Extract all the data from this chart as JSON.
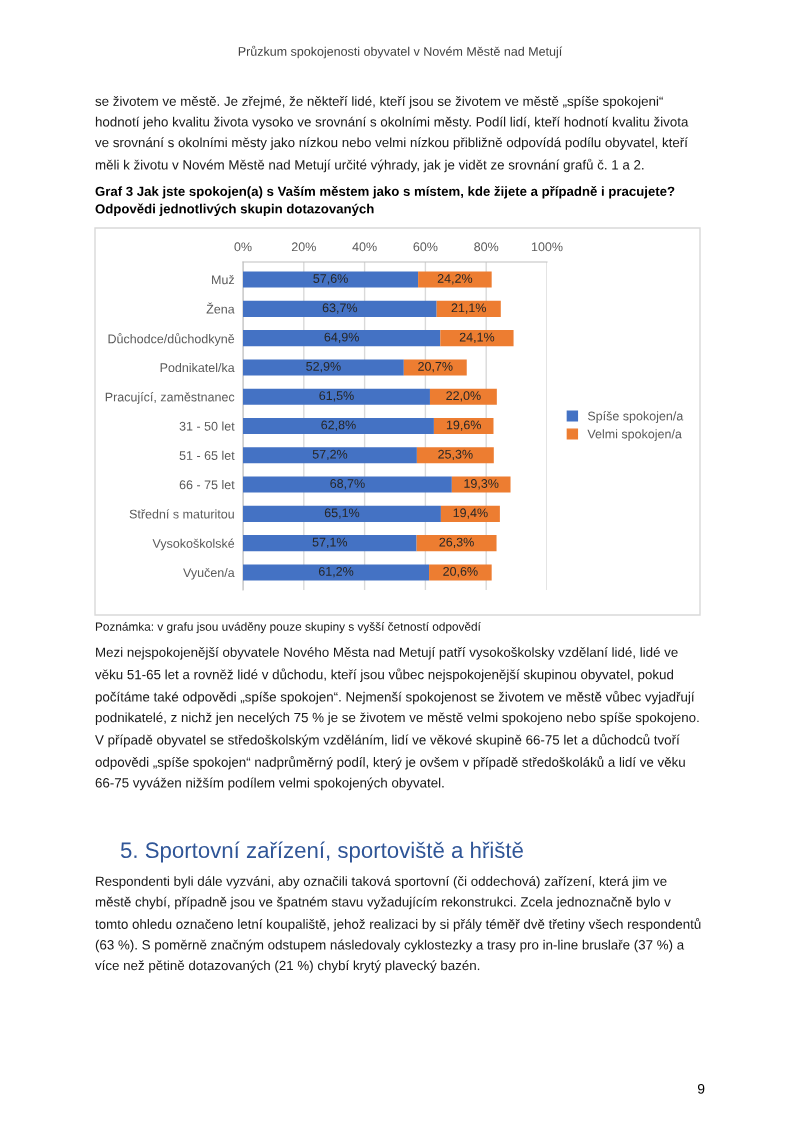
{
  "chart_data": {
    "type": "bar",
    "orientation": "horizontal",
    "stacked": true,
    "title": "Graf 3 Jak jste spokojen(a) s Vaším městem jako s místem, kde žijete a případně i pracujete? Odpovědi jednotlivých skupin dotazovaných",
    "categories": [
      "Muž",
      "Žena",
      "Důchodce/důchodkyně",
      "Podnikatel/ka",
      "Pracující, zaměstnanec",
      "31 - 50 let",
      "51 - 65 let",
      "66 - 75 let",
      "Střední s maturitou",
      "Vysokoškolské",
      "Vyučen/a"
    ],
    "series": [
      {
        "name": "Spíše spokojen/a",
        "color": "#4472c4",
        "values": [
          57.6,
          63.7,
          64.9,
          52.9,
          61.5,
          62.8,
          57.2,
          68.7,
          65.1,
          57.1,
          61.2
        ],
        "value_labels": [
          "57,6%",
          "63,7%",
          "64,9%",
          "52,9%",
          "61,5%",
          "62,8%",
          "57,2%",
          "68,7%",
          "65,1%",
          "57,1%",
          "61,2%"
        ]
      },
      {
        "name": "Velmi spokojen/a",
        "color": "#ed7d31",
        "values": [
          24.2,
          21.1,
          24.1,
          20.7,
          22.0,
          19.6,
          25.3,
          19.3,
          19.4,
          26.3,
          20.6
        ],
        "value_labels": [
          "24,2%",
          "21,1%",
          "24,1%",
          "20,7%",
          "22,0%",
          "19,6%",
          "25,3%",
          "19,3%",
          "19,4%",
          "26,3%",
          "20,6%"
        ]
      }
    ],
    "xlim": [
      0,
      100
    ],
    "xticks": [
      {
        "value": 0,
        "label": "0%"
      },
      {
        "value": 20,
        "label": "20%"
      },
      {
        "value": 40,
        "label": "40%"
      },
      {
        "value": 60,
        "label": "60%"
      },
      {
        "value": 80,
        "label": "80%"
      },
      {
        "value": 100,
        "label": "100%"
      }
    ],
    "grid": "x",
    "legend": "right",
    "annotations": [
      "Průzkum spokojenosti obyvatel v Novém Městě nad Metují",
      "se životem ve městě. Je zřejmé, že někteří lidé, kteří jsou se životem ve městě „spíše spokojeni“ hodnotí jeho kvalitu života vysoko ve srovnání s okolními městy. Podíl lidí, kteří hodnotí kvalitu života ve srovnání s okolními městy jako nízkou nebo velmi nízkou přibližně odpovídá podílu obyvatel, kteří měli k životu v Novém Městě nad Metují určité výhrady, jak je vidět ze srovnání grafů č. 1 a 2.",
      "Poznámka: v grafu jsou uváděny pouze skupiny s vyšší četností odpovědí",
      "Mezi nejspokojenější obyvatele Nového Města nad Metují patří vysokoškolsky vzdělaní lidé, lidé ve věku 51-65 let a rovněž lidé v důchodu, kteří jsou vůbec nejspokojenější skupinou obyvatel, pokud počítáme také odpovědi „spíše spokojen“. Nejmenší spokojenost se životem ve městě vůbec vyjadřují podnikatelé, z nichž jen necelých 75 % je se životem ve městě velmi spokojeno nebo spíše spokojeno. V případě obyvatel se středoškolským vzděláním, lidí ve věkové skupině 66-75 let a důchodců tvoří odpovědi „spíše spokojen“ nadprůměrný podíl, který je ovšem v případě středoškoláků a lidí ve věku 66-75 vyvážen nižším podílem velmi spokojených obyvatel.",
      "5. Sportovní zařízení, sportoviště a hřiště",
      "Respondenti byli dále vyzváni, aby označili taková sportovní (či oddechová) zařízení, která jim ve městě chybí, případně jsou ve špatném stavu vyžadujícím rekonstrukci. Zcela jednoznačně bylo v tomto ohledu označeno letní koupaliště, jehož realizaci by si přály téměř dvě třetiny všech respondentů (63 %). S poměrně značným odstupem následovaly cyklostezky a trasy pro in-line bruslaře (37 %) a více než pětině dotazovaných (21 %) chybí krytý plavecký bazén.",
      "9"
    ]
  }
}
